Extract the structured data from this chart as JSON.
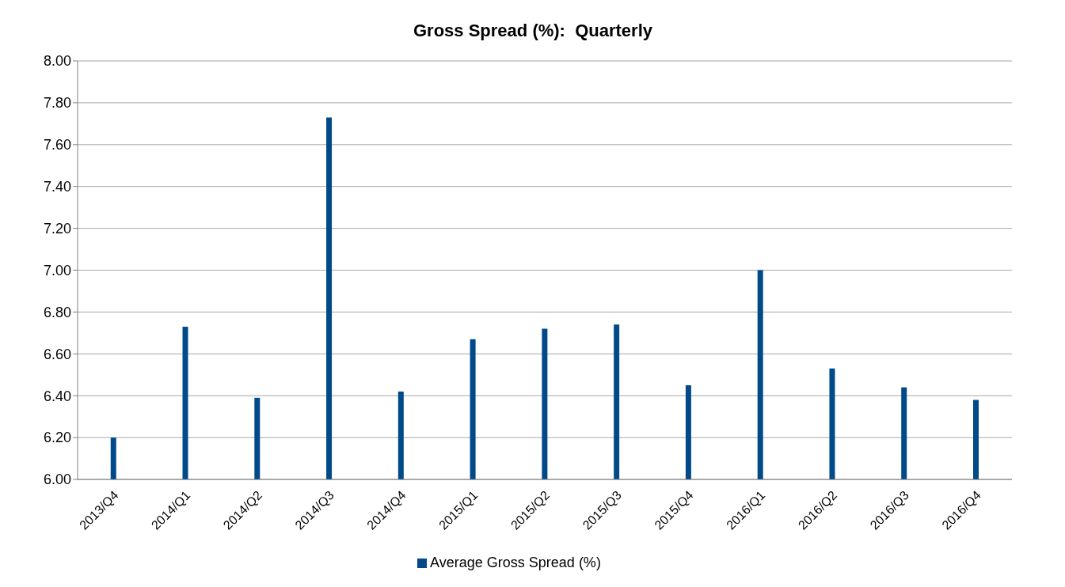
{
  "chart_data": {
    "type": "bar",
    "title": "Gross Spread (%):  Quarterly",
    "categories": [
      "2013/Q4",
      "2014/Q1",
      "2014/Q2",
      "2014/Q3",
      "2014/Q4",
      "2015/Q1",
      "2015/Q2",
      "2015/Q3",
      "2015/Q4",
      "2016/Q1",
      "2016/Q2",
      "2016/Q3",
      "2016/Q4"
    ],
    "series": [
      {
        "name": "Average Gross Spread (%)",
        "color": "#004a8a",
        "values": [
          6.2,
          6.73,
          6.39,
          7.73,
          6.42,
          6.67,
          6.72,
          6.74,
          6.45,
          7.0,
          6.53,
          6.44,
          6.38
        ]
      }
    ],
    "ylim": [
      6,
      8
    ],
    "yticks": [
      {
        "value": 6,
        "label": "6.00"
      },
      {
        "value": 6.2,
        "label": "6.20"
      },
      {
        "value": 6.4,
        "label": "6.40"
      },
      {
        "value": 6.6,
        "label": "6.60"
      },
      {
        "value": 6.8,
        "label": "6.80"
      },
      {
        "value": 7,
        "label": "7.00"
      },
      {
        "value": 7.2,
        "label": "7.20"
      },
      {
        "value": 7.4,
        "label": "7.40"
      },
      {
        "value": 7.6,
        "label": "7.60"
      },
      {
        "value": 7.8,
        "label": "7.80"
      },
      {
        "value": 8,
        "label": "8.00"
      }
    ],
    "grid": "y",
    "legend": "bottom"
  }
}
